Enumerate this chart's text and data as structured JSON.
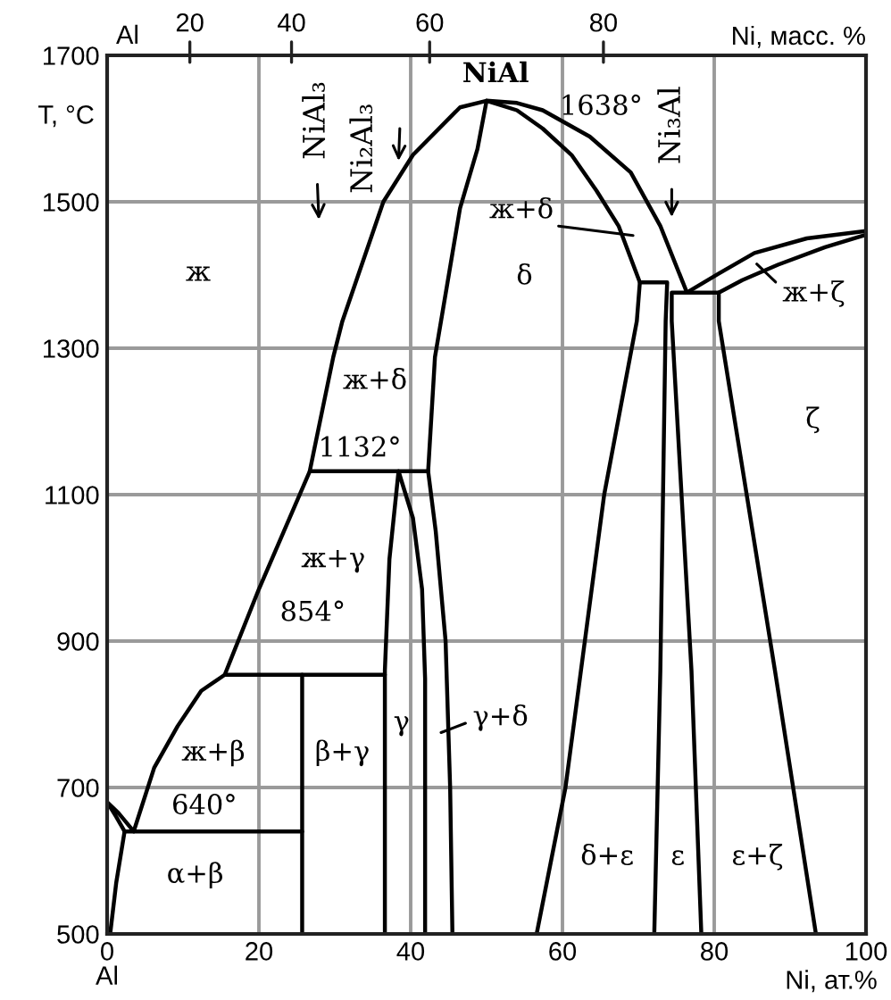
{
  "chart_data": {
    "type": "line",
    "xlabel": "Ni, ат.%",
    "ylabel": "T, °C",
    "x2label": "Ni, масс. %",
    "xlim": [
      0,
      100
    ],
    "xticks": [
      {
        "value": 0,
        "label": "0\nAl"
      },
      20,
      40,
      60,
      80,
      100
    ],
    "ylim": [
      500,
      1700
    ],
    "yticks": [
      500,
      700,
      900,
      1100,
      1300,
      1500,
      1700
    ],
    "grid": true,
    "series": [
      {
        "color": "#000000",
        "x": [
          0.4,
          1.2,
          2.3,
          1.2,
          0,
          1.5,
          3.5,
          6.2,
          9.3,
          12.4,
          15.5,
          20,
          26.7,
          29.8,
          31,
          36.4,
          40.3,
          46.5,
          50,
          54,
          57.4,
          63.6,
          69,
          72.9,
          76.4,
          80.6,
          85.3,
          92.2,
          100
        ],
        "values": [
          500,
          570,
          640,
          660,
          680,
          665,
          640,
          727,
          784,
          832,
          854,
          971,
          1132,
          1288,
          1337,
          1500,
          1564,
          1629,
          1638,
          1635,
          1625,
          1589,
          1540,
          1467,
          1376,
          1402,
          1430,
          1450,
          1460
        ]
      },
      {
        "color": "#000000",
        "x": [
          45.5,
          45.2,
          44.6,
          43.3,
          42.3,
          43.2,
          46.5,
          48.8,
          50,
          54,
          57.4,
          61.2,
          64.5,
          67.4,
          70.2,
          69.8,
          65.5,
          60.4,
          56.6
        ],
        "values": [
          500,
          700,
          900,
          1050,
          1132,
          1288,
          1491,
          1572,
          1638,
          1625,
          1600,
          1564,
          1515,
          1467,
          1390,
          1337,
          1100,
          700,
          500
        ]
      },
      {
        "color": "#000000",
        "x": [
          36.6,
          36.6,
          37.2,
          38.4,
          40.3,
          41.5,
          41.9,
          41.9
        ],
        "values": [
          500,
          860,
          1012,
          1132,
          1068,
          971,
          849,
          500
        ]
      },
      {
        "color": "#000000",
        "x": [
          2.3,
          25.7
        ],
        "values": [
          640,
          640
        ]
      },
      {
        "color": "#000000",
        "x": [
          15.5,
          36.6
        ],
        "values": [
          854,
          854
        ]
      },
      {
        "color": "#000000",
        "x": [
          25.7,
          25.7
        ],
        "values": [
          854,
          500
        ]
      },
      {
        "color": "#000000",
        "x": [
          26.7,
          42.3
        ],
        "values": [
          1132,
          1132
        ]
      },
      {
        "color": "#000000",
        "x": [
          70.2,
          73.8,
          73.6,
          72.9,
          72.1
        ],
        "values": [
          1390,
          1390,
          1337,
          860,
          500
        ]
      },
      {
        "color": "#000000",
        "x": [
          78.3,
          77.0,
          74.4,
          74.4,
          80.6
        ],
        "values": [
          500,
          860,
          1337,
          1376,
          1376
        ]
      },
      {
        "color": "#000000",
        "x": [
          93.4,
          88.0,
          80.6,
          80.6,
          83.7,
          88.4,
          94.6,
          100
        ],
        "values": [
          500,
          860,
          1337,
          1376,
          1393,
          1414,
          1438,
          1455
        ]
      }
    ],
    "annotations": [
      "NiAl₃",
      "Ni₂Al₃",
      "Ni₃Al",
      "NiAl",
      "1638°",
      "ж",
      {
        "text": "ж+δ",
        "x": 69.3,
        "y": 1454
      },
      "δ",
      {
        "text": "ж+ζ",
        "x": 85.6,
        "y": 1415
      },
      "ζ",
      "ж+δ",
      "1132°",
      "ж+γ",
      "854°",
      "ж+β",
      "640°",
      "α+β",
      "β+γ",
      "γ",
      {
        "text": "γ+δ",
        "x": 44,
        "y": 775
      },
      "δ+ε",
      "ε",
      "ε+ζ",
      "Al",
      "20",
      "40",
      "60",
      "80"
    ]
  }
}
